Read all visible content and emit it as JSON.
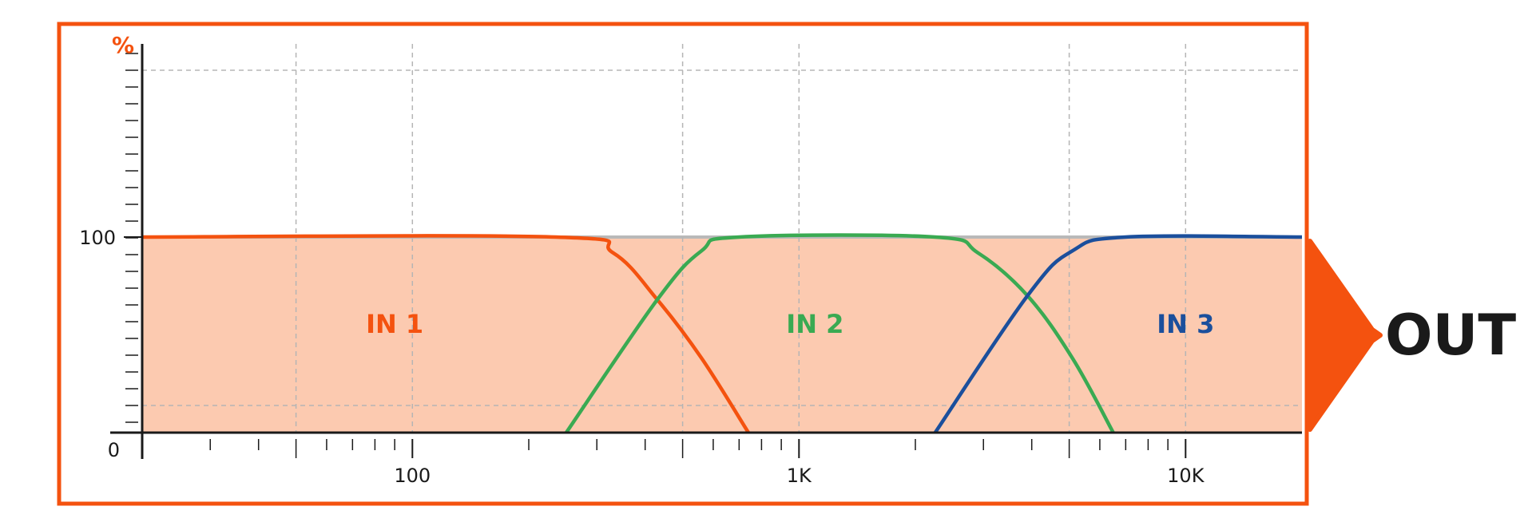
{
  "chart_data": {
    "type": "line",
    "x_scale": "log",
    "xlim": [
      20,
      20000
    ],
    "ylim": [
      0,
      100
    ],
    "grid": true,
    "y_unit_label": "%",
    "x_tick_labels": [
      {
        "value": 100,
        "label": "100"
      },
      {
        "value": 1000,
        "label": "1K"
      },
      {
        "value": 10000,
        "label": "10K"
      }
    ],
    "y_tick_labels": [
      {
        "value": 0,
        "label": "0"
      },
      {
        "value": 100,
        "label": "100"
      }
    ],
    "series": [
      {
        "name": "IN 1",
        "color": "#f4520f",
        "points": [
          [
            20,
            100
          ],
          [
            235,
            100
          ],
          [
            330,
            92
          ],
          [
            430,
            68
          ],
          [
            560,
            38
          ],
          [
            740,
            0
          ]
        ]
      },
      {
        "name": "IN 2",
        "color": "#3aaa52",
        "points": [
          [
            250,
            0
          ],
          [
            430,
            68
          ],
          [
            560,
            93
          ],
          [
            700,
            100
          ],
          [
            2250,
            100
          ],
          [
            2900,
            92
          ],
          [
            3900,
            70
          ],
          [
            5100,
            38
          ],
          [
            6500,
            0
          ]
        ]
      },
      {
        "name": "IN 3",
        "color": "#1b4f9c",
        "points": [
          [
            2250,
            0
          ],
          [
            3900,
            70
          ],
          [
            5100,
            93
          ],
          [
            7000,
            100
          ],
          [
            20000,
            100
          ]
        ]
      }
    ],
    "band_labels": [
      {
        "text": "IN 1",
        "x": 90,
        "color": "#f4520f"
      },
      {
        "text": "IN 2",
        "x": 1100,
        "color": "#3aaa52"
      },
      {
        "text": "IN 3",
        "x": 10000,
        "color": "#1b4f9c"
      }
    ],
    "output_label": "OUT",
    "accent_color": "#f4520f",
    "fill_color": "#fccab0"
  }
}
